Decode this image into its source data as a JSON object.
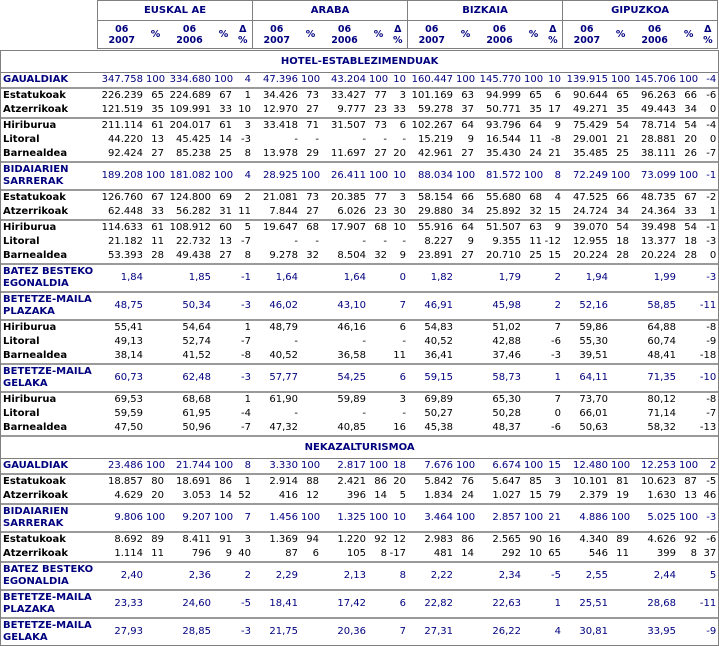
{
  "header": {
    "regions": [
      "EUSKAL AE",
      "ARABA",
      "BIZKAIA",
      "GIPUZKOA"
    ],
    "columns": [
      "06\n2007",
      "%",
      "06\n2006",
      "%",
      "Δ %"
    ]
  },
  "accent_color": "#00007f",
  "line_color": "#7f7f7f",
  "sections": [
    {
      "title": "HOTEL-ESTABLEZIMENDUAK",
      "rows": [
        {
          "label": "GAUALDIAK",
          "type": "summary",
          "sep": true,
          "cells": [
            "347.758",
            "100",
            "334.680",
            "100",
            "4",
            "47.396",
            "100",
            "43.204",
            "100",
            "10",
            "160.447",
            "100",
            "145.770",
            "100",
            "10",
            "139.915",
            "100",
            "145.706",
            "100",
            "-4"
          ]
        },
        {
          "label": "Estatukoak",
          "type": "detail",
          "sep": false,
          "cells": [
            "226.239",
            "65",
            "224.689",
            "67",
            "1",
            "34.426",
            "73",
            "33.427",
            "77",
            "3",
            "101.169",
            "63",
            "94.999",
            "65",
            "6",
            "90.644",
            "65",
            "96.263",
            "66",
            "-6"
          ]
        },
        {
          "label": "Atzerrikoak",
          "type": "detail",
          "sep": true,
          "cells": [
            "121.519",
            "35",
            "109.991",
            "33",
            "10",
            "12.970",
            "27",
            "9.777",
            "23",
            "33",
            "59.278",
            "37",
            "50.771",
            "35",
            "17",
            "49.271",
            "35",
            "49.443",
            "34",
            "0"
          ]
        },
        {
          "label": "Hiriburua",
          "type": "detail",
          "sep": false,
          "cells": [
            "211.114",
            "61",
            "204.017",
            "61",
            "3",
            "33.418",
            "71",
            "31.507",
            "73",
            "6",
            "102.267",
            "64",
            "93.796",
            "64",
            "9",
            "75.429",
            "54",
            "78.714",
            "54",
            "-4"
          ]
        },
        {
          "label": "Litoral",
          "type": "detail",
          "sep": false,
          "cells": [
            "44.220",
            "13",
            "45.425",
            "14",
            "-3",
            "-",
            "-",
            "-",
            "-",
            "-",
            "15.219",
            "9",
            "16.544",
            "11",
            "-8",
            "29.001",
            "21",
            "28.881",
            "20",
            "0"
          ]
        },
        {
          "label": "Barnealdea",
          "type": "detail",
          "sep": true,
          "cells": [
            "92.424",
            "27",
            "85.238",
            "25",
            "8",
            "13.978",
            "29",
            "11.697",
            "27",
            "20",
            "42.961",
            "27",
            "35.430",
            "24",
            "21",
            "35.485",
            "25",
            "38.111",
            "26",
            "-7"
          ]
        },
        {
          "label": "BIDAIARIEN SARRERAK",
          "type": "summary",
          "sep": true,
          "cells": [
            "189.208",
            "100",
            "181.082",
            "100",
            "4",
            "28.925",
            "100",
            "26.411",
            "100",
            "10",
            "88.034",
            "100",
            "81.572",
            "100",
            "8",
            "72.249",
            "100",
            "73.099",
            "100",
            "-1"
          ]
        },
        {
          "label": "Estatukoak",
          "type": "detail",
          "sep": false,
          "cells": [
            "126.760",
            "67",
            "124.800",
            "69",
            "2",
            "21.081",
            "73",
            "20.385",
            "77",
            "3",
            "58.154",
            "66",
            "55.680",
            "68",
            "4",
            "47.525",
            "66",
            "48.735",
            "67",
            "-2"
          ]
        },
        {
          "label": "Atzerrikoak",
          "type": "detail",
          "sep": true,
          "cells": [
            "62.448",
            "33",
            "56.282",
            "31",
            "11",
            "7.844",
            "27",
            "6.026",
            "23",
            "30",
            "29.880",
            "34",
            "25.892",
            "32",
            "15",
            "24.724",
            "34",
            "24.364",
            "33",
            "1"
          ]
        },
        {
          "label": "Hiriburua",
          "type": "detail",
          "sep": false,
          "cells": [
            "114.633",
            "61",
            "108.912",
            "60",
            "5",
            "19.647",
            "68",
            "17.907",
            "68",
            "10",
            "55.916",
            "64",
            "51.507",
            "63",
            "9",
            "39.070",
            "54",
            "39.498",
            "54",
            "-1"
          ]
        },
        {
          "label": "Litoral",
          "type": "detail",
          "sep": false,
          "cells": [
            "21.182",
            "11",
            "22.732",
            "13",
            "-7",
            "-",
            "-",
            "-",
            "-",
            "-",
            "8.227",
            "9",
            "9.355",
            "11",
            "-12",
            "12.955",
            "18",
            "13.377",
            "18",
            "-3"
          ]
        },
        {
          "label": "Barnealdea",
          "type": "detail",
          "sep": true,
          "cells": [
            "53.393",
            "28",
            "49.438",
            "27",
            "8",
            "9.278",
            "32",
            "8.504",
            "32",
            "9",
            "23.891",
            "27",
            "20.710",
            "25",
            "15",
            "20.224",
            "28",
            "20.224",
            "28",
            "0"
          ]
        },
        {
          "label": "BATEZ BESTEKO EGONALDIA",
          "type": "summary",
          "sep": true,
          "cells": [
            "1,84",
            "",
            "1,85",
            "",
            "-1",
            "1,64",
            "",
            "1,64",
            "",
            "0",
            "1,82",
            "",
            "1,79",
            "",
            "2",
            "1,94",
            "",
            "1,99",
            "",
            "-3"
          ]
        },
        {
          "label": "BETETZE-MAILA PLAZAKA",
          "type": "summary",
          "sep": true,
          "cells": [
            "48,75",
            "",
            "50,34",
            "",
            "-3",
            "46,02",
            "",
            "43,10",
            "",
            "7",
            "46,91",
            "",
            "45,98",
            "",
            "2",
            "52,16",
            "",
            "58,85",
            "",
            "-11"
          ]
        },
        {
          "label": "Hiriburua",
          "type": "detail",
          "sep": false,
          "cells": [
            "55,41",
            "",
            "54,64",
            "",
            "1",
            "48,79",
            "",
            "46,16",
            "",
            "6",
            "54,83",
            "",
            "51,02",
            "",
            "7",
            "59,86",
            "",
            "64,88",
            "",
            "-8"
          ]
        },
        {
          "label": "Litoral",
          "type": "detail",
          "sep": false,
          "cells": [
            "49,13",
            "",
            "52,74",
            "",
            "-7",
            "-",
            "",
            "-",
            "",
            "-",
            "40,52",
            "",
            "42,88",
            "",
            "-6",
            "55,30",
            "",
            "60,74",
            "",
            "-9"
          ]
        },
        {
          "label": "Barnealdea",
          "type": "detail",
          "sep": true,
          "cells": [
            "38,14",
            "",
            "41,52",
            "",
            "-8",
            "40,52",
            "",
            "36,58",
            "",
            "11",
            "36,41",
            "",
            "37,46",
            "",
            "-3",
            "39,51",
            "",
            "48,41",
            "",
            "-18"
          ]
        },
        {
          "label": "BETETZE-MAILA GELAKA",
          "type": "summary",
          "sep": true,
          "cells": [
            "60,73",
            "",
            "62,48",
            "",
            "-3",
            "57,77",
            "",
            "54,25",
            "",
            "6",
            "59,15",
            "",
            "58,73",
            "",
            "1",
            "64,11",
            "",
            "71,35",
            "",
            "-10"
          ]
        },
        {
          "label": "Hiriburua",
          "type": "detail",
          "sep": false,
          "cells": [
            "69,53",
            "",
            "68,68",
            "",
            "1",
            "61,90",
            "",
            "59,89",
            "",
            "3",
            "69,89",
            "",
            "65,30",
            "",
            "7",
            "73,70",
            "",
            "80,12",
            "",
            "-8"
          ]
        },
        {
          "label": "Litoral",
          "type": "detail",
          "sep": false,
          "cells": [
            "59,59",
            "",
            "61,95",
            "",
            "-4",
            "-",
            "",
            "-",
            "",
            "-",
            "50,27",
            "",
            "50,28",
            "",
            "0",
            "66,01",
            "",
            "71,14",
            "",
            "-7"
          ]
        },
        {
          "label": "Barnealdea",
          "type": "detail",
          "sep": true,
          "cells": [
            "47,50",
            "",
            "50,96",
            "",
            "-7",
            "47,32",
            "",
            "40,85",
            "",
            "16",
            "45,38",
            "",
            "48,37",
            "",
            "-6",
            "50,63",
            "",
            "58,32",
            "",
            "-13"
          ]
        }
      ]
    },
    {
      "title": "NEKAZALTURISMOA",
      "rows": [
        {
          "label": "GAUALDIAK",
          "type": "summary",
          "sep": true,
          "cells": [
            "23.486",
            "100",
            "21.744",
            "100",
            "8",
            "3.330",
            "100",
            "2.817",
            "100",
            "18",
            "7.676",
            "100",
            "6.674",
            "100",
            "15",
            "12.480",
            "100",
            "12.253",
            "100",
            "2"
          ]
        },
        {
          "label": "Estatukoak",
          "type": "detail",
          "sep": false,
          "cells": [
            "18.857",
            "80",
            "18.691",
            "86",
            "1",
            "2.914",
            "88",
            "2.421",
            "86",
            "20",
            "5.842",
            "76",
            "5.647",
            "85",
            "3",
            "10.101",
            "81",
            "10.623",
            "87",
            "-5"
          ]
        },
        {
          "label": "Atzerrikoak",
          "type": "detail",
          "sep": true,
          "cells": [
            "4.629",
            "20",
            "3.053",
            "14",
            "52",
            "416",
            "12",
            "396",
            "14",
            "5",
            "1.834",
            "24",
            "1.027",
            "15",
            "79",
            "2.379",
            "19",
            "1.630",
            "13",
            "46"
          ]
        },
        {
          "label": "BIDAIARIEN SARRERAK",
          "type": "summary",
          "sep": true,
          "cells": [
            "9.806",
            "100",
            "9.207",
            "100",
            "7",
            "1.456",
            "100",
            "1.325",
            "100",
            "10",
            "3.464",
            "100",
            "2.857",
            "100",
            "21",
            "4.886",
            "100",
            "5.025",
            "100",
            "-3"
          ]
        },
        {
          "label": "Estatukoak",
          "type": "detail",
          "sep": false,
          "cells": [
            "8.692",
            "89",
            "8.411",
            "91",
            "3",
            "1.369",
            "94",
            "1.220",
            "92",
            "12",
            "2.983",
            "86",
            "2.565",
            "90",
            "16",
            "4.340",
            "89",
            "4.626",
            "92",
            "-6"
          ]
        },
        {
          "label": "Atzerrikoak",
          "type": "detail",
          "sep": true,
          "cells": [
            "1.114",
            "11",
            "796",
            "9",
            "40",
            "87",
            "6",
            "105",
            "8",
            "-17",
            "481",
            "14",
            "292",
            "10",
            "65",
            "546",
            "11",
            "399",
            "8",
            "37"
          ]
        },
        {
          "label": "BATEZ BESTEKO EGONALDIA",
          "type": "summary",
          "sep": true,
          "cells": [
            "2,40",
            "",
            "2,36",
            "",
            "2",
            "2,29",
            "",
            "2,13",
            "",
            "8",
            "2,22",
            "",
            "2,34",
            "",
            "-5",
            "2,55",
            "",
            "2,44",
            "",
            "5"
          ]
        },
        {
          "label": "BETETZE-MAILA PLAZAKA",
          "type": "summary",
          "sep": true,
          "cells": [
            "23,33",
            "",
            "24,60",
            "",
            "-5",
            "18,41",
            "",
            "17,42",
            "",
            "6",
            "22,82",
            "",
            "22,63",
            "",
            "1",
            "25,51",
            "",
            "28,68",
            "",
            "-11"
          ]
        },
        {
          "label": "BETETZE-MAILA GELAKA",
          "type": "summary",
          "sep": false,
          "cells": [
            "27,93",
            "",
            "28,85",
            "",
            "-3",
            "21,75",
            "",
            "20,36",
            "",
            "7",
            "27,31",
            "",
            "26,22",
            "",
            "4",
            "30,81",
            "",
            "33,95",
            "",
            "-9"
          ]
        }
      ]
    }
  ]
}
